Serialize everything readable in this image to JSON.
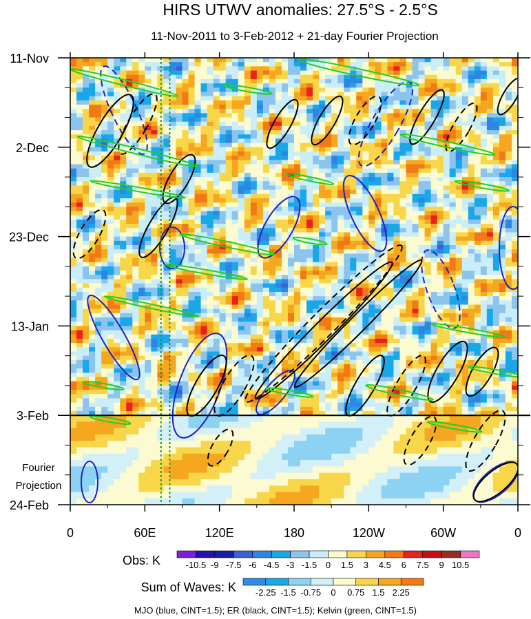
{
  "chart_data": {
    "type": "heatmap",
    "title": "HIRS UTWV anomalies: 27.5°S - 2.5°S",
    "subtitle": "11-Nov-2011 to 3-Feb-2012 + 21-day Fourier Projection",
    "x_tick_labels": [
      "0",
      "60E",
      "120E",
      "180",
      "120W",
      "60W",
      "0"
    ],
    "x_range": [
      0,
      360
    ],
    "x_ticks_deg": [
      0,
      60,
      120,
      180,
      240,
      300,
      360
    ],
    "y_tick_labels": [
      "11-Nov",
      "2-Dec",
      "23-Dec",
      "13-Jan",
      "3-Feb",
      "24-Feb"
    ],
    "y_ticks_day": [
      0,
      21,
      42,
      63,
      84,
      105
    ],
    "y_range_days": [
      0,
      105
    ],
    "forecast_label": "Fourier Projection",
    "forecast_start_day": 84,
    "reference_lines_lon": [
      73,
      80
    ],
    "obs_colorbar": {
      "label": "Obs: K",
      "levels": [
        "-10.5",
        "-9",
        "-7.5",
        "-6",
        "-4.5",
        "-3",
        "-1.5",
        "0",
        "1.5",
        "3",
        "4.5",
        "6",
        "7.5",
        "9",
        "10.5"
      ],
      "colors": [
        "#7a1fdc",
        "#2a0fb0",
        "#1520a8",
        "#3a62d2",
        "#2e86e2",
        "#1aa7e8",
        "#8dc4ee",
        "#c9eef7",
        "#fcfad0",
        "#f8d64a",
        "#f5a71f",
        "#f27a16",
        "#e8231b",
        "#c21016",
        "#9c2b22",
        "#f075c8"
      ]
    },
    "waves_colorbar": {
      "label": "Sum of Waves: K",
      "levels": [
        "-2.25",
        "-1.5",
        "-0.75",
        "0",
        "0.75",
        "1.5",
        "2.25"
      ],
      "colors": [
        "#2e8ee6",
        "#1aa7e8",
        "#8dd2f2",
        "#d3f0f8",
        "#fcfad0",
        "#f8d64a",
        "#f5a71f",
        "#f27a16"
      ]
    },
    "footnote": "MJO (blue, CINT=1.5); ER (black, CINT=1.5); Kelvin (green, CINT=1.5)",
    "contour_series": [
      {
        "name": "MJO",
        "color": "#2020c0",
        "cint": 1.5
      },
      {
        "name": "ER",
        "color": "#000000",
        "cint": 1.5
      },
      {
        "name": "Kelvin",
        "color": "#22d022",
        "cint": 1.5
      }
    ]
  }
}
